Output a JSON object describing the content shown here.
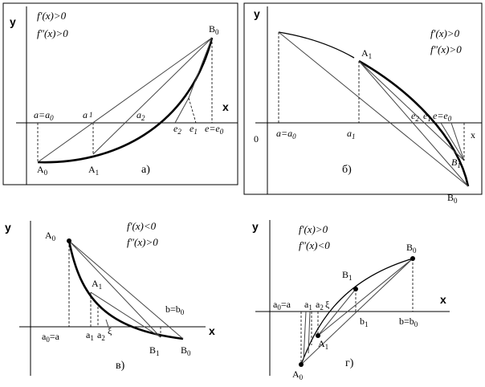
{
  "panel_a": {
    "cond1": "f′(x)>0",
    "cond2": "f″(x)>0",
    "y": "y",
    "x": "x",
    "b0": "B",
    "a_eq_a0": "a=a",
    "a1": "a",
    "a2": "a",
    "e2": "e",
    "e1": "e",
    "e_eq_e0": "e=e",
    "pt_A0": "A",
    "pt_A1": "A",
    "caption": "а)",
    "s0": "0",
    "s1": "1",
    "s2": "2"
  },
  "panel_b": {
    "cond1": "f′(x)>0",
    "cond2": "f″(x)>0",
    "y": "y",
    "x": "x",
    "origin": "0",
    "pt_A1": "A",
    "a_eq_a0": "a=a",
    "a1": "a",
    "e2": "e",
    "e1": "e",
    "e_eq_e0": "e=e",
    "pt_B1": "B",
    "pt_B0": "B",
    "caption": "б)",
    "s0": "0",
    "s1": "1",
    "s2": "2"
  },
  "panel_c": {
    "cond1": "f′(x)<0",
    "cond2": "f″(x)>0",
    "y": "y",
    "x": "x",
    "pt_A0": "A",
    "pt_A1": "A",
    "b_eq_b0": "b=b",
    "a0_eq_a": "a",
    "a0_suffix": "=a",
    "a1": "a",
    "a2": "a",
    "xi": "ξ",
    "pt_B1": "B",
    "pt_B0": "B",
    "caption": "в)",
    "s0": "0",
    "s1": "1",
    "s2": "2"
  },
  "panel_d": {
    "cond1": "f′(x)>0",
    "cond2": "f″(x)<0",
    "y": "y",
    "x": "x",
    "pt_B0": "B",
    "pt_B1": "B",
    "a0_eq_a": "a",
    "a0_suffix": "=a",
    "a1": "a",
    "a2": "a",
    "xi": "ξ",
    "b1": "b",
    "b_eq_b0": "b=b",
    "pt_A1": "A",
    "pt_A0": "A",
    "caption": "г)",
    "s0": "0",
    "s1": "1",
    "s2": "2"
  }
}
